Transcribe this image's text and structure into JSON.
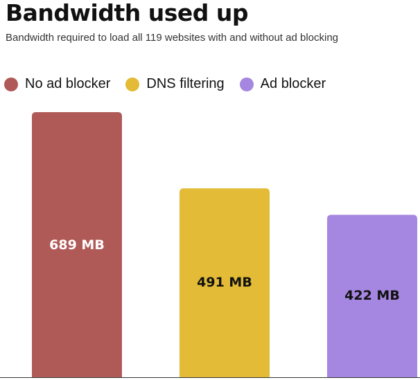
{
  "chart_data": {
    "type": "bar",
    "title": "Bandwidth used up",
    "subtitle": "Bandwidth required to load all 119 websites with and without ad blocking",
    "categories": [
      "No ad blocker",
      "DNS filtering",
      "Ad blocker"
    ],
    "values": [
      689,
      491,
      422
    ],
    "data_labels": [
      "689 MB",
      "491 MB",
      "422 MB"
    ],
    "colors": [
      "#b05a58",
      "#e3bb36",
      "#a586e0"
    ],
    "label_colors": [
      "#ffffff",
      "#111111",
      "#111111"
    ],
    "unit": "MB",
    "ylim": [
      0,
      689
    ],
    "grid": false,
    "legend_position": "top-left"
  }
}
